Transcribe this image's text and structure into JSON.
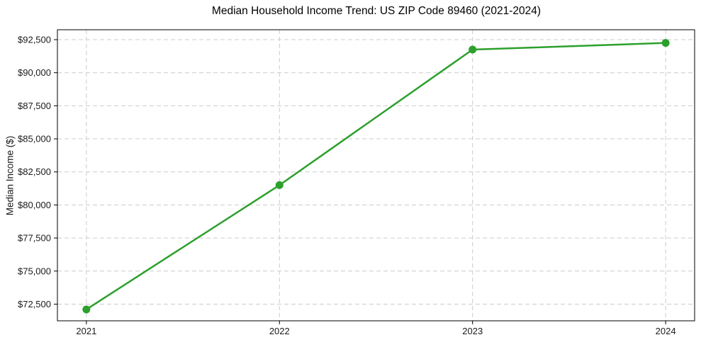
{
  "chart_data": {
    "type": "line",
    "title": "Median Household Income Trend: US ZIP Code 89460 (2021-2024)",
    "xlabel": "",
    "ylabel": "Median Income ($)",
    "x": [
      2021,
      2022,
      2023,
      2024
    ],
    "x_tick_labels": [
      "2021",
      "2022",
      "2023",
      "2024"
    ],
    "values": [
      72100,
      81500,
      91750,
      92250
    ],
    "y_ticks": [
      {
        "value": 72500,
        "label": "$72,500"
      },
      {
        "value": 75000,
        "label": "$75,000"
      },
      {
        "value": 77500,
        "label": "$77,500"
      },
      {
        "value": 80000,
        "label": "$80,000"
      },
      {
        "value": 82500,
        "label": "$82,500"
      },
      {
        "value": 85000,
        "label": "$85,000"
      },
      {
        "value": 87500,
        "label": "$87,500"
      },
      {
        "value": 90000,
        "label": "$90,000"
      },
      {
        "value": 92500,
        "label": "$92,500"
      }
    ],
    "xlim": [
      2020.85,
      2024.15
    ],
    "ylim": [
      71240,
      93250
    ],
    "grid": {
      "visible": true,
      "style": "dashed",
      "color": "#cccccc"
    },
    "legend_position": "none",
    "marker": "circle",
    "line_color": "#2ca02c",
    "spine_color": "#000000",
    "tick_text_color": "#1a1a1a"
  }
}
